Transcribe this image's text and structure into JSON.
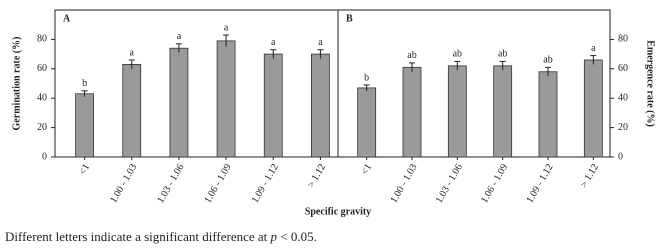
{
  "chart_data": [
    {
      "type": "bar",
      "title": "A",
      "ylabel": "Germination rate (%)",
      "yaxis_side": "left",
      "xlabel": "Specific gravity",
      "categories": [
        "<1",
        "1.00 - 1.03",
        "1.03 - 1.06",
        "1.06 - 1.09",
        "1.09 - 1.12",
        "> 1.12"
      ],
      "values": [
        43,
        63,
        74,
        79,
        70,
        70
      ],
      "errors": [
        2,
        3,
        3,
        4,
        3,
        3
      ],
      "annotations": [
        "b",
        "a",
        "a",
        "a",
        "a",
        "a"
      ],
      "color": "#9a9a9a",
      "ylim": [
        0,
        100
      ],
      "yticks": [
        0,
        20,
        40,
        60,
        80
      ]
    },
    {
      "type": "bar",
      "title": "B",
      "ylabel": "Emergence rate (%)",
      "yaxis_side": "right",
      "categories": [
        "<1",
        "1.00 - 1.03",
        "1.03 - 1.06",
        "1.06 - 1.09",
        "1.09 - 1.12",
        "> 1.12"
      ],
      "values": [
        47,
        61,
        62,
        62,
        58,
        66
      ],
      "errors": [
        2,
        3,
        3,
        3,
        3,
        3
      ],
      "annotations": [
        "b",
        "ab",
        "ab",
        "ab",
        "ab",
        "a"
      ],
      "color": "#9a9a9a",
      "ylim": [
        0,
        100
      ],
      "yticks": [
        0,
        20,
        40,
        60,
        80
      ]
    }
  ],
  "caption": {
    "before": "Different letters indicate a significant difference at",
    "variable": "p",
    "after": "< 0.05."
  }
}
